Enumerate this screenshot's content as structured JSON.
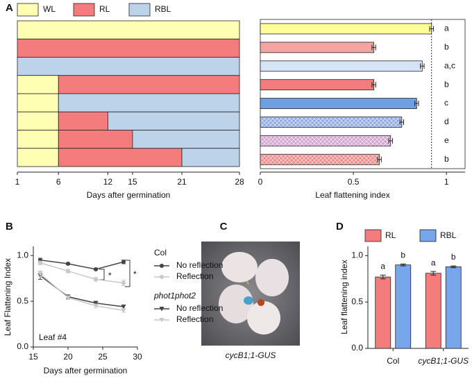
{
  "chart_data": [
    {
      "type": "timeline",
      "panel": "A",
      "series": [
        {
          "name": "WL",
          "color": "#ffffb3"
        },
        {
          "name": "RL",
          "color": "#f47c7c"
        },
        {
          "name": "RBL",
          "color": "#bdd3ea"
        }
      ],
      "rows": [
        [
          {
            "light": "WL",
            "start": 1,
            "end": 28
          }
        ],
        [
          {
            "light": "RL",
            "start": 1,
            "end": 28
          }
        ],
        [
          {
            "light": "RBL",
            "start": 1,
            "end": 28
          }
        ],
        [
          {
            "light": "WL",
            "start": 1,
            "end": 6
          },
          {
            "light": "RL",
            "start": 6,
            "end": 28
          }
        ],
        [
          {
            "light": "WL",
            "start": 1,
            "end": 6
          },
          {
            "light": "RBL",
            "start": 6,
            "end": 28
          }
        ],
        [
          {
            "light": "WL",
            "start": 1,
            "end": 6
          },
          {
            "light": "RL",
            "start": 6,
            "end": 12
          },
          {
            "light": "RBL",
            "start": 12,
            "end": 28
          }
        ],
        [
          {
            "light": "WL",
            "start": 1,
            "end": 6
          },
          {
            "light": "RL",
            "start": 6,
            "end": 15
          },
          {
            "light": "RBL",
            "start": 15,
            "end": 28
          }
        ],
        [
          {
            "light": "WL",
            "start": 1,
            "end": 6
          },
          {
            "light": "RL",
            "start": 6,
            "end": 21
          },
          {
            "light": "RBL",
            "start": 21,
            "end": 28
          }
        ]
      ],
      "xlim": [
        1,
        28
      ],
      "xticks": [
        1,
        6,
        12,
        15,
        21,
        28
      ],
      "xlabel": "Days after germination"
    },
    {
      "type": "bar",
      "orientation": "horizontal",
      "values": [
        0.92,
        0.61,
        0.87,
        0.61,
        0.84,
        0.76,
        0.7,
        0.64
      ],
      "errors": [
        0.01,
        0.01,
        0.01,
        0.01,
        0.01,
        0.01,
        0.01,
        0.01
      ],
      "colors": [
        "#ffff99",
        "#f6a3a3",
        "#d4e3f5",
        "#f47c7c",
        "#6f9fe3",
        "#8ea9e4",
        "#d3a4cf",
        "#f08a8a"
      ],
      "hatch": [
        false,
        false,
        false,
        false,
        false,
        true,
        true,
        true
      ],
      "letters": [
        "a",
        "b",
        "a,c",
        "b",
        "c",
        "d",
        "e",
        "b"
      ],
      "reference_line": 0.92,
      "xlim": [
        0,
        1.1
      ],
      "xticks": [
        0,
        0.5,
        1
      ],
      "xlabel": "Leaf flattening index"
    },
    {
      "type": "line",
      "panel": "B",
      "x": [
        16,
        20,
        24,
        28
      ],
      "groups": [
        {
          "name": "Col",
          "series": [
            {
              "name": "No reflection",
              "color": "#444444",
              "marker": "circle",
              "values": [
                0.95,
                0.91,
                0.85,
                0.93
              ],
              "errors": [
                0.02,
                0.01,
                0.01,
                0.02
              ]
            },
            {
              "name": "Reflection",
              "color": "#c8c8c8",
              "marker": "circle",
              "values": [
                0.92,
                0.83,
                0.74,
                0.7
              ],
              "errors": [
                0.02,
                0.02,
                0.02,
                0.03
              ]
            }
          ]
        },
        {
          "name": "phot1phot2",
          "series": [
            {
              "name": "No reflection",
              "color": "#444444",
              "marker": "triangle",
              "values": [
                0.78,
                0.55,
                0.48,
                0.44
              ],
              "errors": [
                0.04,
                0.02,
                0.02,
                0.02
              ]
            },
            {
              "name": "Reflection",
              "color": "#c8c8c8",
              "marker": "triangle",
              "values": [
                0.8,
                0.54,
                0.45,
                0.4
              ],
              "errors": [
                0.03,
                0.02,
                0.02,
                0.02
              ]
            }
          ]
        }
      ],
      "annotation": "Leaf #4",
      "significance": [
        "*",
        "*"
      ],
      "xlim": [
        15,
        30
      ],
      "xticks": [
        15,
        20,
        25,
        30
      ],
      "ylim": [
        0,
        1.1
      ],
      "yticks": [
        {
          "value": 0,
          "label": "0.0"
        },
        {
          "value": 0.5,
          "label": "0.5"
        },
        {
          "value": 1,
          "label": "1.0"
        }
      ],
      "xlabel": "Days after germination",
      "ylabel": "Leaf Flattening Index"
    },
    {
      "type": "bar",
      "orientation": "vertical",
      "panel": "D",
      "categories": [
        "Col",
        "cycB1;1-GUS"
      ],
      "series": [
        {
          "name": "RL",
          "color": "#f47c7c",
          "values": [
            0.77,
            0.81
          ],
          "errors": [
            0.02,
            0.02
          ],
          "letters": [
            "a",
            "a"
          ]
        },
        {
          "name": "RBL",
          "color": "#77a6ea",
          "values": [
            0.9,
            0.88
          ],
          "errors": [
            0.01,
            0.01
          ],
          "letters": [
            "b",
            "b"
          ]
        }
      ],
      "ylim": [
        0,
        1.1
      ],
      "yticks": [
        {
          "value": 0,
          "label": "0.0"
        },
        {
          "value": 0.5,
          "label": "0.5"
        },
        {
          "value": 1,
          "label": "1.0"
        }
      ],
      "ylabel": "Leaf flattening index"
    }
  ],
  "photo": {
    "panel": "C",
    "caption": "cycB1;1-GUS"
  }
}
